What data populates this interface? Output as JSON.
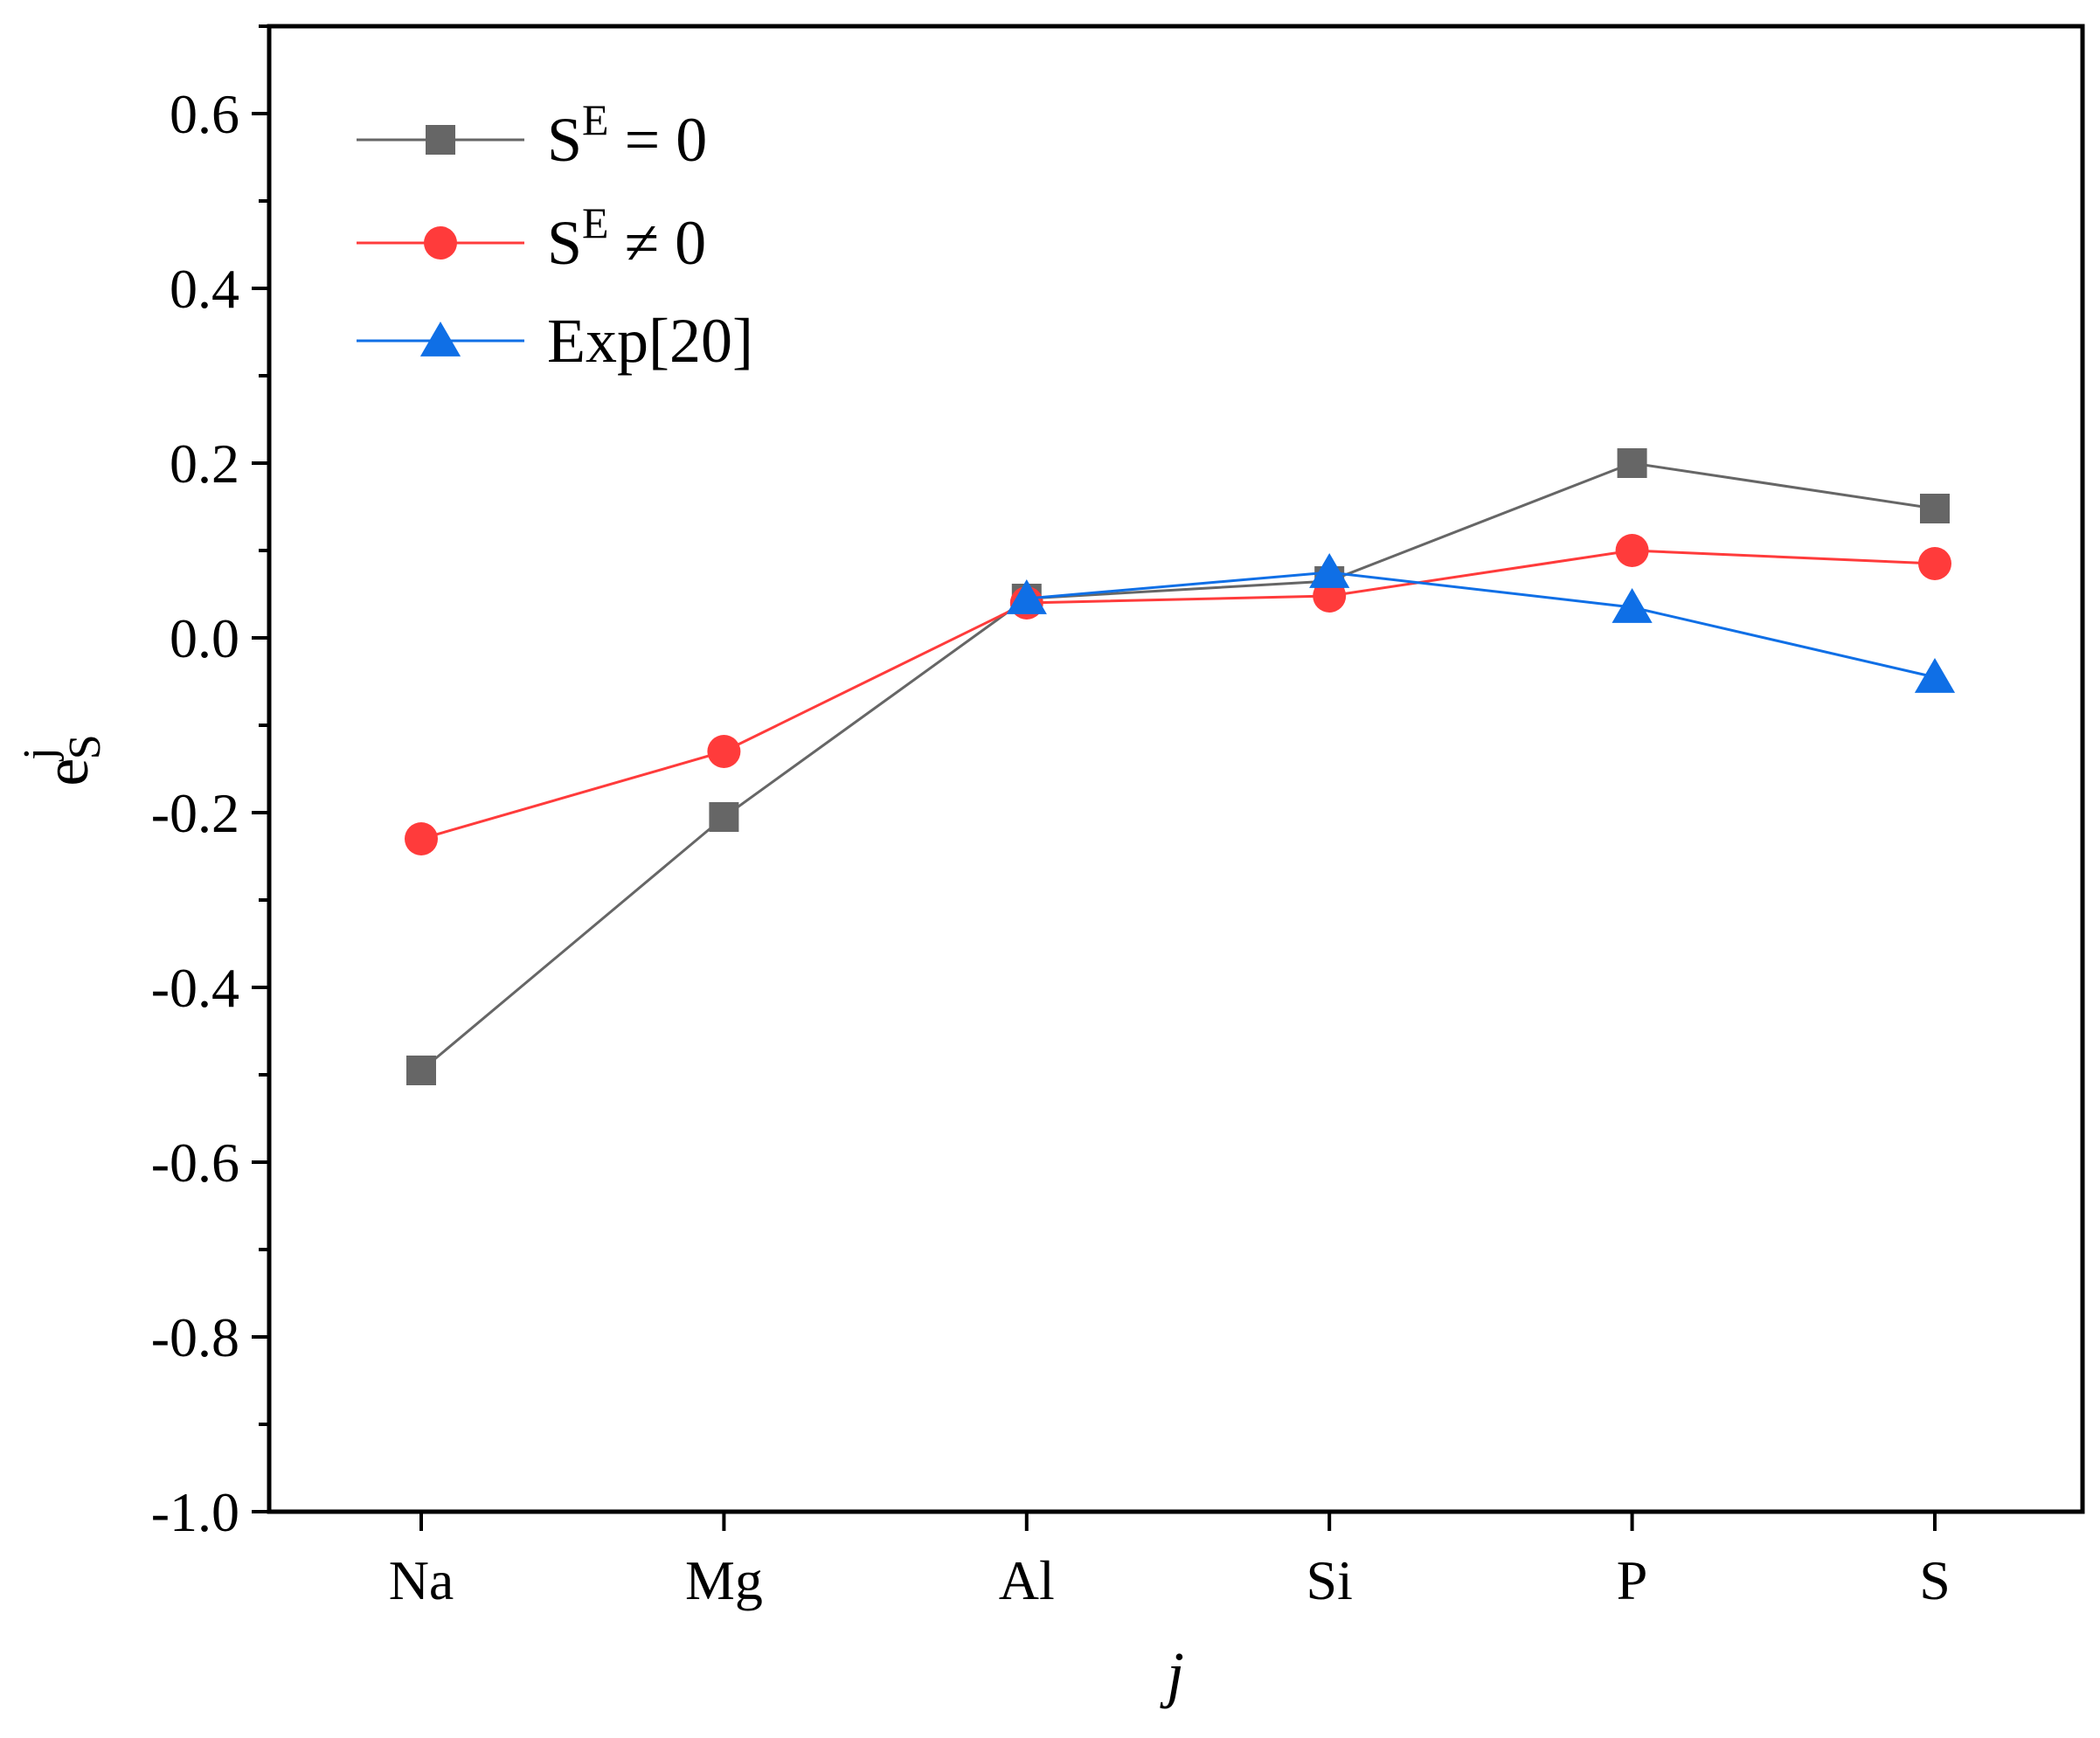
{
  "chart_data": {
    "type": "line",
    "categories": [
      "Na",
      "Mg",
      "Al",
      "Si",
      "P",
      "S"
    ],
    "xlabel": "j",
    "ylabel": {
      "base": "e",
      "superscript": "j",
      "subscript": "S"
    },
    "ylim": [
      -1.0,
      0.7
    ],
    "yticks": [
      -1.0,
      -0.8,
      -0.6,
      -0.4,
      -0.2,
      0.0,
      0.2,
      0.4,
      0.6
    ],
    "ytick_labels": [
      "-1.0",
      "-0.8",
      "-0.6",
      "-0.4",
      "-0.2",
      "0.0",
      "0.2",
      "0.4",
      "0.6"
    ],
    "legend_position": "top-left",
    "series": [
      {
        "name": "S^E = 0",
        "label_base": "S",
        "label_sup": "E",
        "label_rest": " = 0",
        "color": "#666666",
        "marker": "square",
        "values": [
          -0.495,
          -0.205,
          0.045,
          0.065,
          0.2,
          0.148
        ]
      },
      {
        "name": "S^E ≠ 0",
        "label_base": "S",
        "label_sup": "E",
        "label_rest": " ≠ 0",
        "color": "#ff3b3b",
        "marker": "circle",
        "values": [
          -0.23,
          -0.13,
          0.04,
          0.048,
          0.1,
          0.085
        ]
      },
      {
        "name": "Exp[20]",
        "label_base": "Exp[20]",
        "label_sup": "",
        "label_rest": "",
        "color": "#0f6fe6",
        "marker": "triangle",
        "values": [
          null,
          null,
          0.045,
          0.075,
          0.035,
          -0.045
        ]
      }
    ]
  }
}
